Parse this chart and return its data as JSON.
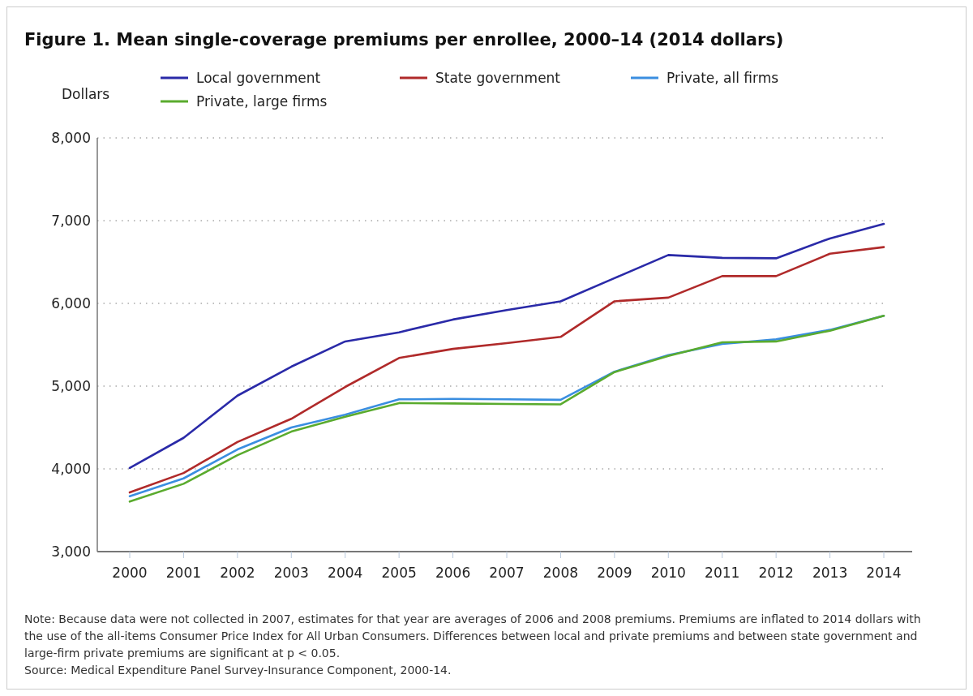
{
  "chart_data": {
    "type": "line",
    "title": "Figure 1. Mean single-coverage premiums per enrollee, 2000–14 (2014 dollars)",
    "ylabel": "Dollars",
    "categories": [
      "2000",
      "2001",
      "2002",
      "2003",
      "2004",
      "2005",
      "2006",
      "2007",
      "2008",
      "2009",
      "2010",
      "2011",
      "2012",
      "2013",
      "2014"
    ],
    "series": [
      {
        "name": "Local government",
        "color": "#2a2aa8",
        "values": [
          4010,
          4375,
          4885,
          5235,
          5540,
          5650,
          5805,
          5920,
          6025,
          6305,
          6585,
          6550,
          6545,
          6785,
          6960
        ]
      },
      {
        "name": "State government",
        "color": "#b02a2a",
        "values": [
          3715,
          3950,
          4325,
          4605,
          4990,
          5340,
          5450,
          5520,
          5595,
          6025,
          6070,
          6330,
          6330,
          6600,
          6680
        ]
      },
      {
        "name": "Private, all firms",
        "color": "#3a8ee0",
        "values": [
          3670,
          3885,
          4235,
          4500,
          4655,
          4840,
          4845,
          4840,
          4835,
          5175,
          5375,
          5510,
          5565,
          5680,
          5850
        ]
      },
      {
        "name": "Private, large firms",
        "color": "#5aab2e",
        "values": [
          3605,
          3820,
          4165,
          4450,
          4630,
          4795,
          4790,
          4785,
          4780,
          5170,
          5365,
          5530,
          5540,
          5670,
          5850
        ]
      }
    ],
    "ylim": [
      3000,
      8000
    ],
    "yticks": [
      {
        "value": 3000,
        "label": "3,000"
      },
      {
        "value": 4000,
        "label": "4,000"
      },
      {
        "value": 5000,
        "label": "5,000"
      },
      {
        "value": 6000,
        "label": "6,000"
      },
      {
        "value": 7000,
        "label": "7,000"
      },
      {
        "value": 8000,
        "label": "8,000"
      }
    ],
    "grid": "y",
    "legend": "top",
    "marker": "none",
    "line_style": "solid",
    "annotations": [
      "Note: Because data were not collected in 2007, estimates for that year are averages of 2006 and 2008 premiums. Premiums are inflated to 2014 dollars with the use of the all-items Consumer Price Index for All Urban Consumers. Differences between local and private premiums and between state government and large-firm private premiums are significant at p < 0.05.",
      "Source: Medical Expenditure Panel Survey-Insurance Component, 2000-14."
    ]
  }
}
